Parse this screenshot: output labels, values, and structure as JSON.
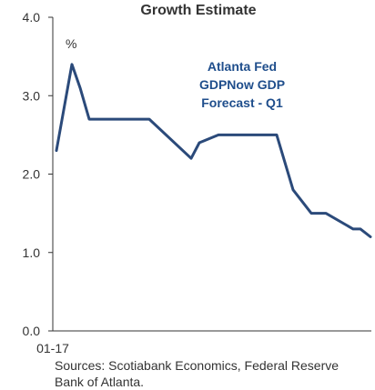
{
  "chart_data": {
    "type": "line",
    "title": "Growth Estimate",
    "unit_label": "%",
    "annotation": [
      "Atlanta Fed",
      "GDPNow GDP",
      "Forecast - Q1"
    ],
    "xlabel": "",
    "ylabel": "",
    "x_tick_label": "01-17",
    "ylim": [
      0,
      4
    ],
    "y_ticks": [
      "0.0",
      "1.0",
      "2.0",
      "3.0",
      "4.0"
    ],
    "grid": false,
    "line_color": "#2b4a7a",
    "series": [
      {
        "values": [
          2.3,
          3.4,
          3.1,
          2.7,
          2.7,
          2.7,
          2.7,
          2.7,
          2.2,
          2.4,
          2.5,
          2.5,
          2.5,
          1.8,
          1.5,
          1.5,
          1.3,
          1.3,
          1.2
        ]
      }
    ]
  },
  "source_text": "Sources: Scotiabank Economics, Federal Reserve Bank of Atlanta."
}
